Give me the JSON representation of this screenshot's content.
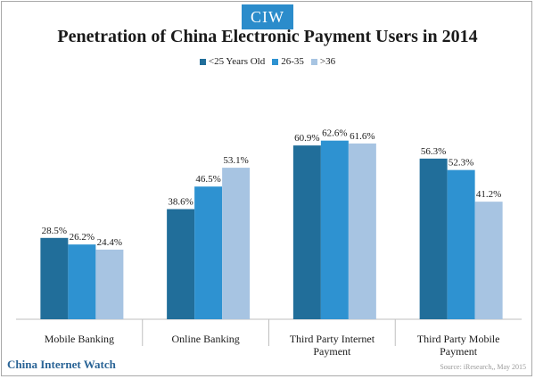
{
  "logo_text": "CIW",
  "brand": "China Internet Watch",
  "source": "Source: iResearch,, May 2015",
  "colors": {
    "series": [
      "#216e9a",
      "#2e92d1",
      "#a7c4e2"
    ],
    "logo_bg": "#2b8ccb",
    "axis": "#bfbfbf"
  },
  "chart_data": {
    "type": "bar",
    "title": "Penetration of China Electronic Payment Users in 2014",
    "categories": [
      [
        "Mobile Banking"
      ],
      [
        "Online Banking"
      ],
      [
        "Third Party Internet",
        "Payment"
      ],
      [
        "Third Party Mobile",
        "Payment"
      ]
    ],
    "series": [
      {
        "name": "<25 Years Old",
        "values": [
          28.5,
          38.6,
          60.9,
          56.3
        ],
        "labels": [
          "28.5%",
          "38.6%",
          "60.9%",
          "56.3%"
        ]
      },
      {
        "name": "26-35",
        "values": [
          26.2,
          46.5,
          62.6,
          52.3
        ],
        "labels": [
          "26.2%",
          "46.5%",
          "62.6%",
          "52.3%"
        ]
      },
      {
        "name": ">36",
        "values": [
          24.4,
          53.1,
          61.6,
          41.2
        ],
        "labels": [
          "24.4%",
          "53.1%",
          "61.6%",
          "41.2%"
        ]
      }
    ],
    "legend_position": "top-center",
    "ylim": [
      0,
      70
    ],
    "grid": false,
    "xlabel": "",
    "ylabel": ""
  }
}
